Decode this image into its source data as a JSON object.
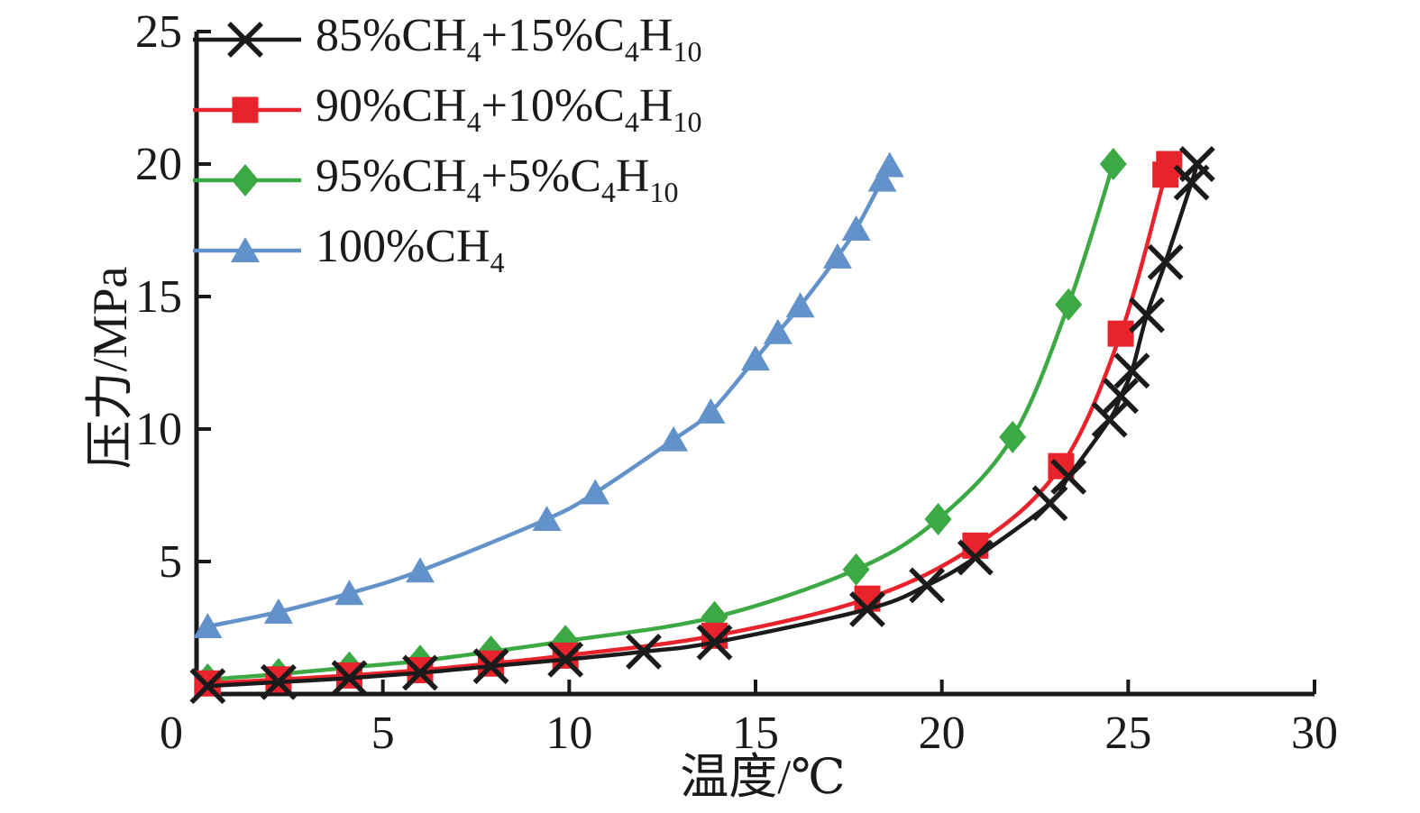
{
  "chart_data": {
    "type": "line",
    "xlabel": "温度/℃",
    "ylabel": "压力/MPa",
    "xlim": [
      0,
      30
    ],
    "ylim": [
      0,
      25
    ],
    "x_ticks": [
      0,
      5,
      10,
      15,
      20,
      25,
      30
    ],
    "y_ticks": [
      5,
      10,
      15,
      20,
      25
    ],
    "grid": false,
    "legend_position": "top-left",
    "axis_color": "#1a1a1a",
    "background_color": "#ffffff",
    "series": [
      {
        "name": "85%CH₄+15%C₄H₁₀",
        "name_parts": [
          {
            "text": "85%CH"
          },
          {
            "text": "4",
            "sub": true
          },
          {
            "text": "+15%C"
          },
          {
            "text": "4",
            "sub": true
          },
          {
            "text": "H"
          },
          {
            "text": "10",
            "sub": true
          }
        ],
        "color": "#1b1b1b",
        "marker": "x",
        "points": [
          [
            0.3,
            0.3
          ],
          [
            2.2,
            0.45
          ],
          [
            4.1,
            0.6
          ],
          [
            6.0,
            0.8
          ],
          [
            7.9,
            1.05
          ],
          [
            9.9,
            1.3
          ],
          [
            12.0,
            1.6
          ],
          [
            13.9,
            1.95
          ],
          [
            18.0,
            3.2
          ],
          [
            19.6,
            4.1
          ],
          [
            20.9,
            5.15
          ],
          [
            22.9,
            7.2
          ],
          [
            23.4,
            8.2
          ],
          [
            24.5,
            10.35
          ],
          [
            24.8,
            11.25
          ],
          [
            25.1,
            12.2
          ],
          [
            25.5,
            14.3
          ],
          [
            26.0,
            16.3
          ],
          [
            26.7,
            19.3
          ],
          [
            26.85,
            20.0
          ]
        ]
      },
      {
        "name": "90%CH₄+10%C₄H₁₀",
        "name_parts": [
          {
            "text": "90%CH"
          },
          {
            "text": "4",
            "sub": true
          },
          {
            "text": "+10%C"
          },
          {
            "text": "4",
            "sub": true
          },
          {
            "text": "H"
          },
          {
            "text": "10",
            "sub": true
          }
        ],
        "color": "#e8232b",
        "marker": "square",
        "points": [
          [
            0.3,
            0.4
          ],
          [
            2.2,
            0.55
          ],
          [
            4.1,
            0.7
          ],
          [
            6.0,
            0.9
          ],
          [
            7.9,
            1.15
          ],
          [
            9.9,
            1.45
          ],
          [
            13.9,
            2.2
          ],
          [
            18.0,
            3.6
          ],
          [
            20.9,
            5.6
          ],
          [
            23.2,
            8.6
          ],
          [
            24.8,
            13.6
          ],
          [
            26.0,
            19.6
          ],
          [
            26.1,
            20.0
          ]
        ]
      },
      {
        "name": "95%CH₄+5%C₄H₁₀",
        "name_parts": [
          {
            "text": "95%CH"
          },
          {
            "text": "4",
            "sub": true
          },
          {
            "text": "+5%C"
          },
          {
            "text": "4",
            "sub": true
          },
          {
            "text": "H"
          },
          {
            "text": "10",
            "sub": true
          }
        ],
        "color": "#3ca944",
        "marker": "diamond",
        "points": [
          [
            0.3,
            0.55
          ],
          [
            2.2,
            0.75
          ],
          [
            4.1,
            1.0
          ],
          [
            6.0,
            1.25
          ],
          [
            7.9,
            1.6
          ],
          [
            9.9,
            2.0
          ],
          [
            13.9,
            2.9
          ],
          [
            17.7,
            4.7
          ],
          [
            19.9,
            6.6
          ],
          [
            21.9,
            9.7
          ],
          [
            23.4,
            14.7
          ],
          [
            24.6,
            20.0
          ]
        ]
      },
      {
        "name": "100%CH₄",
        "name_parts": [
          {
            "text": "100%CH"
          },
          {
            "text": "4",
            "sub": true
          }
        ],
        "color": "#6292c9",
        "marker": "triangle",
        "points": [
          [
            0.3,
            2.55
          ],
          [
            2.2,
            3.1
          ],
          [
            4.1,
            3.8
          ],
          [
            6.0,
            4.65
          ],
          [
            9.4,
            6.6
          ],
          [
            10.7,
            7.6
          ],
          [
            12.8,
            9.6
          ],
          [
            13.8,
            10.65
          ],
          [
            15.0,
            12.65
          ],
          [
            15.6,
            13.65
          ],
          [
            16.2,
            14.65
          ],
          [
            17.2,
            16.5
          ],
          [
            17.7,
            17.55
          ],
          [
            18.4,
            19.4
          ],
          [
            18.6,
            19.95
          ]
        ]
      }
    ]
  }
}
